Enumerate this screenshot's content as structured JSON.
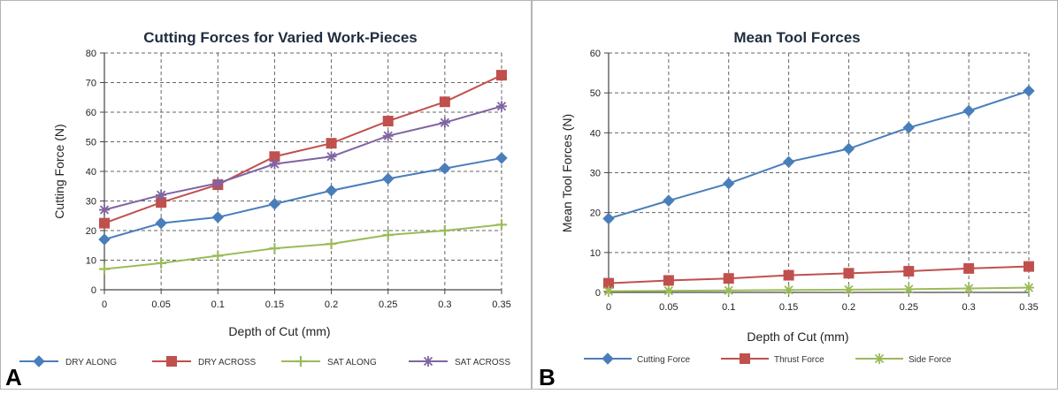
{
  "panels": [
    {
      "letter": "A",
      "chart_data": {
        "type": "line",
        "title": "Cutting Forces for Varied Work-Pieces",
        "xlabel": "Depth of Cut (mm)",
        "ylabel": "Cutting Force (N)",
        "x": [
          0,
          0.05,
          0.1,
          0.15,
          0.2,
          0.25,
          0.3,
          0.35
        ],
        "x_tick_labels": [
          "0",
          "0.05",
          "0.1",
          "0.15",
          "0.2",
          "0.25",
          "0.3",
          "0.35"
        ],
        "ylim": [
          0,
          80
        ],
        "y_ticks": [
          0,
          10,
          20,
          30,
          40,
          50,
          60,
          70,
          80
        ],
        "grid": true,
        "legend_position": "bottom",
        "series": [
          {
            "name": "DRY ALONG",
            "color": "#4a7ebb",
            "marker": "diamond",
            "values": [
              17,
              22.5,
              24.5,
              29,
              33.5,
              37.5,
              41,
              44.5
            ]
          },
          {
            "name": "DRY ACROSS",
            "color": "#c0504d",
            "marker": "square",
            "values": [
              22.5,
              29.5,
              35.5,
              45,
              49.5,
              57,
              63.5,
              72.5
            ]
          },
          {
            "name": "SAT ALONG",
            "color": "#9bbb59",
            "marker": "plus",
            "values": [
              7,
              9,
              11.5,
              14,
              15.5,
              18.5,
              20,
              22
            ]
          },
          {
            "name": "SAT ACROSS",
            "color": "#8064a2",
            "marker": "asterisk",
            "values": [
              27,
              32,
              36,
              42.5,
              45,
              52,
              56.5,
              62
            ]
          }
        ]
      }
    },
    {
      "letter": "B",
      "chart_data": {
        "type": "line",
        "title": "Mean Tool Forces",
        "xlabel": "Depth of Cut (mm)",
        "ylabel": "Mean Tool Forces (N)",
        "x": [
          0,
          0.05,
          0.1,
          0.15,
          0.2,
          0.25,
          0.3,
          0.35
        ],
        "x_tick_labels": [
          "0",
          "0.05",
          "0.1",
          "0.15",
          "0.2",
          "0.25",
          "0.3",
          "0.35"
        ],
        "ylim": [
          0,
          60
        ],
        "y_ticks": [
          0,
          10,
          20,
          30,
          40,
          50,
          60
        ],
        "grid": true,
        "legend_position": "bottom",
        "series": [
          {
            "name": "Cutting Force",
            "color": "#4a7ebb",
            "marker": "diamond",
            "values": [
              18.5,
              23,
              27.3,
              32.7,
              36,
              41.3,
              45.5,
              50.5
            ]
          },
          {
            "name": "Thrust Force",
            "color": "#c0504d",
            "marker": "square",
            "values": [
              2.3,
              3,
              3.5,
              4.3,
              4.8,
              5.3,
              6,
              6.5
            ]
          },
          {
            "name": "Side Force",
            "color": "#9bbb59",
            "marker": "asterisk",
            "values": [
              0.3,
              0.4,
              0.5,
              0.6,
              0.7,
              0.8,
              1,
              1.2
            ]
          }
        ]
      }
    }
  ]
}
